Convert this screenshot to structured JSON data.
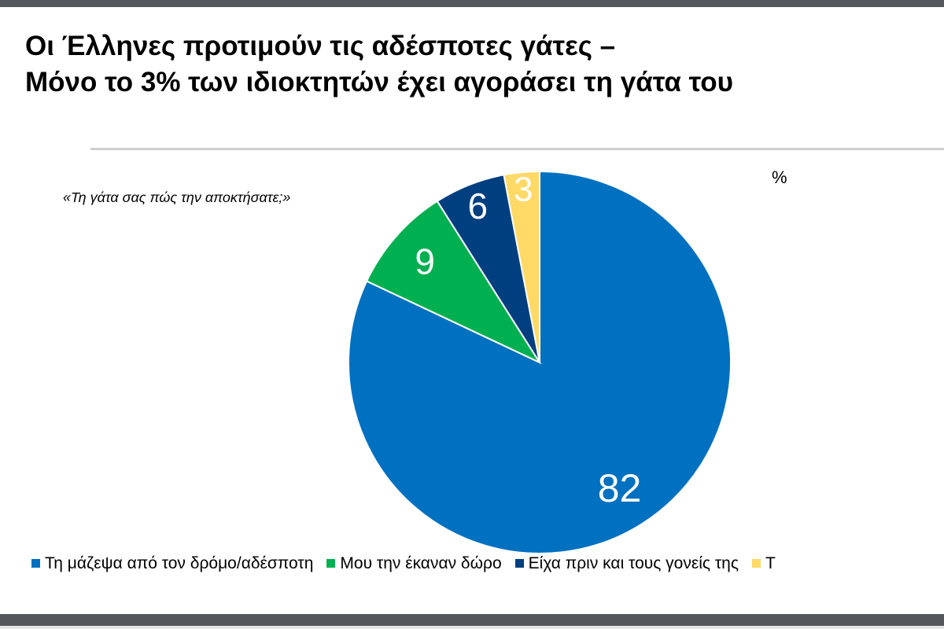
{
  "title_lines": [
    "Οι Έλληνες προτιμούν τις αδέσποτες γάτες –",
    "Μόνο το 3% των ιδιοκτητών έχει αγοράσει τη γάτα του"
  ],
  "chart_data": {
    "type": "pie",
    "subtitle": "«Τη γάτα σας πώς την αποκτήσατε;»",
    "unit": "%",
    "slices": [
      {
        "name": "Τη μάζεψα από τον δρόμο/αδέσποτη",
        "value": 82,
        "label": "82",
        "color": "#0070c0"
      },
      {
        "name": "Μου την έκαναν δώρο",
        "value": 9,
        "label": "9",
        "color": "#00b050"
      },
      {
        "name": "Είχα πριν και τους γονείς της",
        "value": 6,
        "label": "6",
        "color": "#003f7f"
      },
      {
        "name": "Τ",
        "value": 3,
        "label": "3",
        "color": "#ffd966"
      }
    ],
    "legend_position": "bottom"
  }
}
